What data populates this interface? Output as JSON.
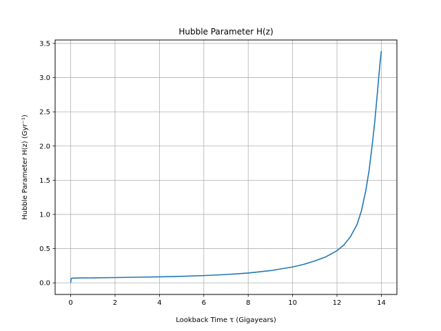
{
  "chart_data": {
    "type": "line",
    "title": "Hubble Parameter H(z)",
    "xlabel": "Lookback Time τ (Gigayears)",
    "ylabel": "Hubble Parameter H(z) (Gyr⁻¹)",
    "xlim": [
      -0.7,
      14.7
    ],
    "ylim": [
      -0.17,
      3.55
    ],
    "xticks": [
      0,
      2,
      4,
      6,
      8,
      10,
      12,
      14
    ],
    "xtick_labels": [
      "0",
      "2",
      "4",
      "6",
      "8",
      "10",
      "12",
      "14"
    ],
    "yticks": [
      0.0,
      0.5,
      1.0,
      1.5,
      2.0,
      2.5,
      3.0,
      3.5
    ],
    "ytick_labels": [
      "0.0",
      "0.5",
      "1.0",
      "1.5",
      "2.0",
      "2.5",
      "3.0",
      "3.5"
    ],
    "grid": true,
    "legend": "none",
    "series": [
      {
        "color": "#1f77b4",
        "x": [
          0.0,
          0.02,
          0.05,
          0.1,
          0.5,
          1,
          2,
          3,
          4,
          5,
          6,
          7,
          8,
          9,
          10,
          10.5,
          11,
          11.5,
          12,
          12.3,
          12.6,
          12.9,
          13.1,
          13.3,
          13.45,
          13.6,
          13.7,
          13.8,
          13.88,
          13.95,
          14.0
        ],
        "y": [
          0.0,
          0.06,
          0.068,
          0.069,
          0.071,
          0.073,
          0.077,
          0.082,
          0.088,
          0.095,
          0.106,
          0.121,
          0.143,
          0.178,
          0.232,
          0.27,
          0.32,
          0.38,
          0.47,
          0.55,
          0.67,
          0.85,
          1.05,
          1.35,
          1.65,
          2.05,
          2.35,
          2.7,
          3.0,
          3.25,
          3.39
        ]
      }
    ]
  }
}
